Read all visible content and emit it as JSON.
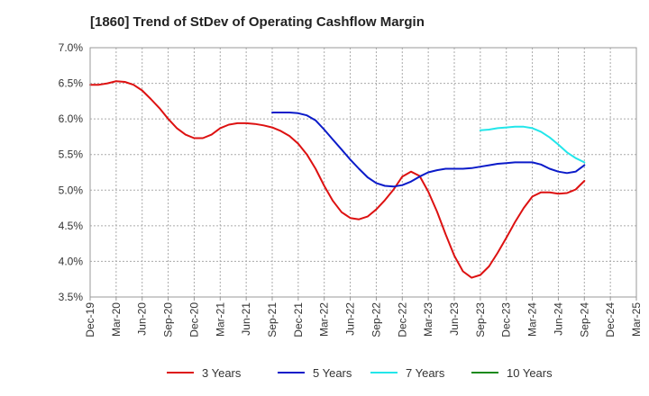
{
  "chart_data": {
    "type": "line",
    "title": "[1860]  Trend of StDev of Operating Cashflow Margin",
    "xlabel": "",
    "ylabel": "",
    "ylim": [
      3.5,
      7.0
    ],
    "y_ticks": [
      "3.5%",
      "4.0%",
      "4.5%",
      "5.0%",
      "5.5%",
      "6.0%",
      "6.5%",
      "7.0%"
    ],
    "x_ticks": [
      "Dec-19",
      "Mar-20",
      "Jun-20",
      "Sep-20",
      "Dec-20",
      "Mar-21",
      "Jun-21",
      "Sep-21",
      "Dec-21",
      "Mar-22",
      "Jun-22",
      "Sep-22",
      "Dec-22",
      "Mar-23",
      "Jun-23",
      "Sep-23",
      "Dec-23",
      "Mar-24",
      "Jun-24",
      "Sep-24",
      "Dec-24",
      "Mar-25"
    ],
    "grid": true,
    "legend_position": "bottom",
    "series": [
      {
        "name": "3 Years",
        "color": "#dd1111",
        "x": [
          "Dec-19",
          "Jan-20",
          "Feb-20",
          "Mar-20",
          "Apr-20",
          "May-20",
          "Jun-20",
          "Jul-20",
          "Aug-20",
          "Sep-20",
          "Oct-20",
          "Nov-20",
          "Dec-20",
          "Jan-21",
          "Feb-21",
          "Mar-21",
          "Apr-21",
          "May-21",
          "Jun-21",
          "Jul-21",
          "Aug-21",
          "Sep-21",
          "Oct-21",
          "Nov-21",
          "Dec-21",
          "Jan-22",
          "Feb-22",
          "Mar-22",
          "Apr-22",
          "May-22",
          "Jun-22",
          "Jul-22",
          "Aug-22",
          "Sep-22",
          "Oct-22",
          "Nov-22",
          "Dec-22",
          "Jan-23",
          "Feb-23",
          "Mar-23",
          "Apr-23",
          "May-23",
          "Jun-23",
          "Jul-23",
          "Aug-23",
          "Sep-23",
          "Oct-23",
          "Nov-23",
          "Dec-23",
          "Jan-24",
          "Feb-24",
          "Mar-24",
          "Apr-24",
          "May-24",
          "Jun-24",
          "Jul-24",
          "Aug-24",
          "Sep-24"
        ],
        "values": [
          6.48,
          6.48,
          6.5,
          6.53,
          6.52,
          6.48,
          6.4,
          6.28,
          6.15,
          6.0,
          5.87,
          5.78,
          5.73,
          5.73,
          5.78,
          5.87,
          5.92,
          5.94,
          5.94,
          5.93,
          5.91,
          5.88,
          5.83,
          5.76,
          5.65,
          5.5,
          5.3,
          5.06,
          4.85,
          4.69,
          4.61,
          4.59,
          4.63,
          4.73,
          4.86,
          5.01,
          5.19,
          5.26,
          5.2,
          4.98,
          4.7,
          4.38,
          4.08,
          3.86,
          3.77,
          3.81,
          3.93,
          4.12,
          4.33,
          4.55,
          4.75,
          4.91,
          4.97,
          4.97,
          4.95,
          4.96,
          5.01,
          5.13
        ]
      },
      {
        "name": "5 Years",
        "color": "#0b1bc9",
        "x": [
          "Sep-21",
          "Oct-21",
          "Nov-21",
          "Dec-21",
          "Jan-22",
          "Feb-22",
          "Mar-22",
          "Apr-22",
          "May-22",
          "Jun-22",
          "Jul-22",
          "Aug-22",
          "Sep-22",
          "Oct-22",
          "Nov-22",
          "Dec-22",
          "Jan-23",
          "Feb-23",
          "Mar-23",
          "Apr-23",
          "May-23",
          "Jun-23",
          "Jul-23",
          "Aug-23",
          "Sep-23",
          "Oct-23",
          "Nov-23",
          "Dec-23",
          "Jan-24",
          "Feb-24",
          "Mar-24",
          "Apr-24",
          "May-24",
          "Jun-24",
          "Jul-24",
          "Aug-24",
          "Sep-24"
        ],
        "values": [
          6.09,
          6.09,
          6.09,
          6.08,
          6.05,
          5.98,
          5.85,
          5.71,
          5.57,
          5.43,
          5.3,
          5.18,
          5.1,
          5.06,
          5.05,
          5.07,
          5.12,
          5.19,
          5.25,
          5.28,
          5.3,
          5.3,
          5.3,
          5.31,
          5.33,
          5.35,
          5.37,
          5.38,
          5.39,
          5.39,
          5.39,
          5.36,
          5.3,
          5.26,
          5.24,
          5.26,
          5.35
        ]
      },
      {
        "name": "7 Years",
        "color": "#22e6ea",
        "x": [
          "Sep-23",
          "Oct-23",
          "Nov-23",
          "Dec-23",
          "Jan-24",
          "Feb-24",
          "Mar-24",
          "Apr-24",
          "May-24",
          "Jun-24",
          "Jul-24",
          "Aug-24",
          "Sep-24"
        ],
        "values": [
          5.84,
          5.85,
          5.87,
          5.88,
          5.89,
          5.89,
          5.87,
          5.82,
          5.74,
          5.64,
          5.53,
          5.45,
          5.39
        ]
      },
      {
        "name": "10 Years",
        "color": "#1a8a1a",
        "x": [],
        "values": []
      }
    ]
  }
}
